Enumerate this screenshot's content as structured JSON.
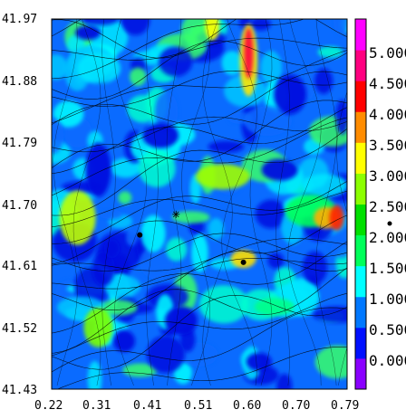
{
  "chart_data": {
    "type": "heatmap",
    "title": "",
    "xlabel": "",
    "ylabel": "",
    "xlim": [
      0.22,
      0.79
    ],
    "ylim": [
      41.43,
      41.97
    ],
    "x_ticks": [
      "0.22",
      "0.31",
      "0.41",
      "0.51",
      "0.60",
      "0.70",
      "0.79"
    ],
    "y_ticks": [
      "41.97",
      "41.88",
      "41.79",
      "41.70",
      "41.61",
      "41.52",
      "41.43"
    ],
    "overlay": "streamlines",
    "markers": [
      {
        "x": 0.39,
        "y": 41.655,
        "symbol": "dot"
      },
      {
        "x": 0.59,
        "y": 41.615,
        "symbol": "dot"
      },
      {
        "x": 0.46,
        "y": 41.685,
        "symbol": "asterisk"
      }
    ],
    "colorbar": {
      "range": [
        -0.5,
        5.5
      ],
      "ticks": [
        "0.000",
        "0.500",
        "1.000",
        "1.500",
        "2.000",
        "2.500",
        "3.000",
        "3.500",
        "4.000",
        "4.500",
        "5.000"
      ],
      "colors": [
        "#8a00ff",
        "#0010ff",
        "#0078ff",
        "#00ffff",
        "#00ff5a",
        "#00e000",
        "#8cff00",
        "#ffff00",
        "#ff8c00",
        "#ff0000",
        "#ff0080",
        "#ff00ff"
      ]
    },
    "background_field_color": "#1060ff"
  }
}
